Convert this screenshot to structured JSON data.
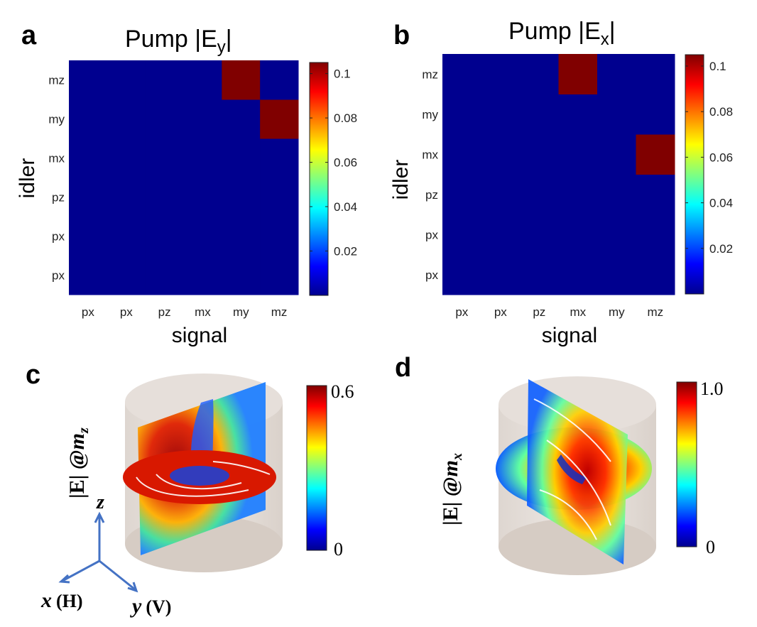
{
  "colormap": [
    "#00008f",
    "#0000ff",
    "#0080ff",
    "#00ffff",
    "#80ff80",
    "#ffff00",
    "#ff8000",
    "#ff0000",
    "#800000"
  ],
  "chart_data": [
    {
      "id": "a",
      "type": "heatmap",
      "panel_label": "a",
      "title_main": "Pump |E",
      "title_sub": "y",
      "title_end": "|",
      "xlabel": "signal",
      "ylabel": "idler",
      "x_categories": [
        "px",
        "px",
        "pz",
        "mx",
        "my",
        "mz"
      ],
      "y_categories": [
        "px",
        "px",
        "pz",
        "mx",
        "my",
        "mz"
      ],
      "high_cells": [
        {
          "x": 4,
          "y": 5
        },
        {
          "x": 5,
          "y": 4
        }
      ],
      "high_value": 0.1,
      "low_value": 0,
      "colorbar_range": [
        0,
        0.105
      ],
      "colorbar_ticks": [
        "0.02",
        "0.04",
        "0.06",
        "0.08",
        "0.1"
      ],
      "colorbar_tick_values": [
        0.02,
        0.04,
        0.06,
        0.08,
        0.1
      ]
    },
    {
      "id": "b",
      "type": "heatmap",
      "panel_label": "b",
      "title_main": "Pump |E",
      "title_sub": "x",
      "title_end": "|",
      "xlabel": "signal",
      "ylabel": "idler",
      "x_categories": [
        "px",
        "px",
        "pz",
        "mx",
        "my",
        "mz"
      ],
      "y_categories": [
        "px",
        "px",
        "pz",
        "mx",
        "my",
        "mz"
      ],
      "high_cells": [
        {
          "x": 3,
          "y": 5
        },
        {
          "x": 5,
          "y": 3
        }
      ],
      "high_value": 0.1,
      "low_value": 0,
      "colorbar_range": [
        0,
        0.105
      ],
      "colorbar_ticks": [
        "0.02",
        "0.04",
        "0.06",
        "0.08",
        "0.1"
      ],
      "colorbar_tick_values": [
        0.02,
        0.04,
        0.06,
        0.08,
        0.1
      ]
    }
  ],
  "panel_c": {
    "panel_label": "c",
    "side_label": "|E| @",
    "side_sub": "m",
    "side_sub_idx": "z",
    "colorbar_max": "0.6",
    "colorbar_min": "0"
  },
  "panel_d": {
    "panel_label": "d",
    "side_label": "|E| @",
    "side_sub": "m",
    "side_sub_idx": "x",
    "colorbar_max": "1.0",
    "colorbar_min": "0"
  },
  "axes": {
    "z_label": "z",
    "x_label": "x",
    "x_sub": "(H)",
    "y_label": "y",
    "y_sub": "(V)"
  }
}
